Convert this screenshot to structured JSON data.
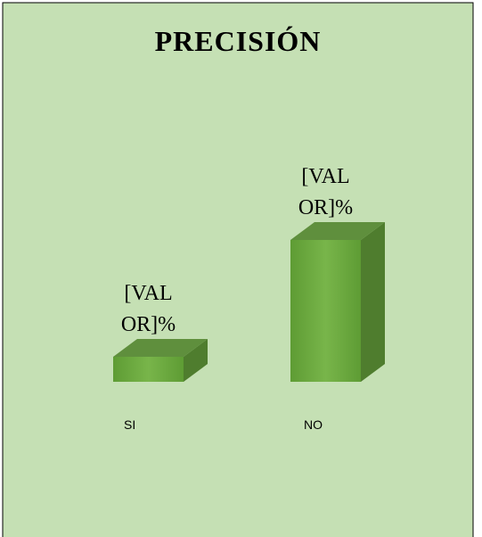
{
  "chart_data": {
    "type": "bar3d",
    "title": "PRECISIÓN",
    "categories": [
      "SI",
      "NO"
    ],
    "values": [
      15,
      85
    ],
    "value_labels": [
      "[VALOR]%",
      "[VALOR]%"
    ],
    "color": "#70ad47",
    "background": "#c5e0b4"
  }
}
